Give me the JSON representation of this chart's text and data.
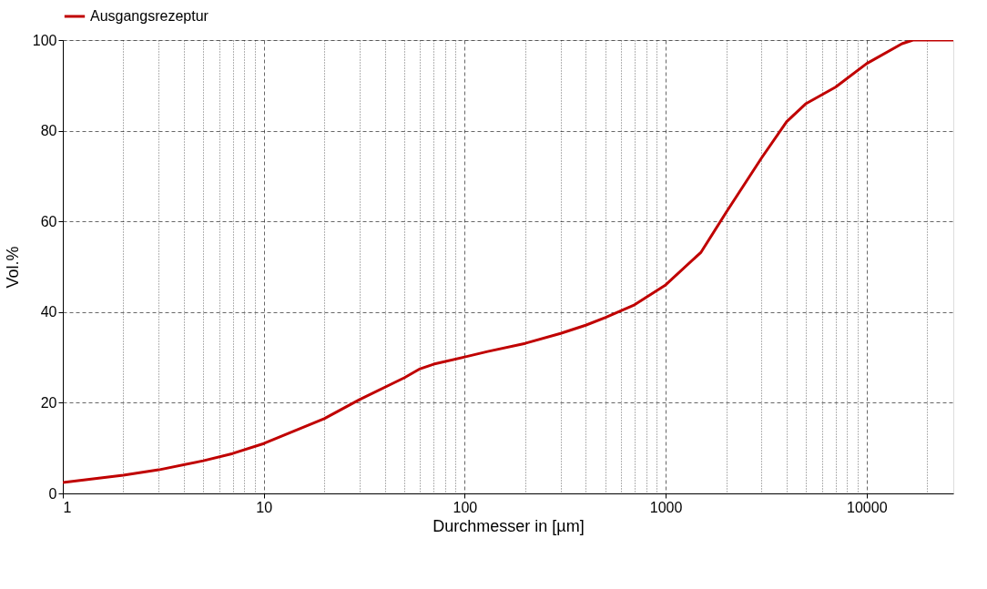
{
  "chart_data": {
    "type": "line",
    "xlabel": "Durchmesser in [µm]",
    "ylabel": "Vol.%",
    "log": "x",
    "legend": "top",
    "grid": true,
    "line_style": "solid",
    "marker": "none",
    "xlim": [
      1,
      27000
    ],
    "ylim": [
      0,
      100
    ],
    "yticks": [
      0,
      20,
      40,
      60,
      80,
      100
    ],
    "xticks": [
      1,
      {
        "value": 2,
        "label": null
      },
      {
        "value": 3,
        "label": null
      },
      {
        "value": 4,
        "label": null
      },
      {
        "value": 5,
        "label": null
      },
      {
        "value": 6,
        "label": null
      },
      {
        "value": 7,
        "label": null
      },
      {
        "value": 8,
        "label": null
      },
      {
        "value": 9,
        "label": null
      },
      10,
      {
        "value": 20,
        "label": null
      },
      {
        "value": 30,
        "label": null
      },
      {
        "value": 40,
        "label": null
      },
      {
        "value": 50,
        "label": null
      },
      {
        "value": 60,
        "label": null
      },
      {
        "value": 70,
        "label": null
      },
      {
        "value": 80,
        "label": null
      },
      {
        "value": 90,
        "label": null
      },
      100,
      {
        "value": 200,
        "label": null
      },
      {
        "value": 300,
        "label": null
      },
      {
        "value": 400,
        "label": null
      },
      {
        "value": 500,
        "label": null
      },
      {
        "value": 600,
        "label": null
      },
      {
        "value": 700,
        "label": null
      },
      {
        "value": 800,
        "label": null
      },
      {
        "value": 900,
        "label": null
      },
      1000,
      {
        "value": 2000,
        "label": null
      },
      {
        "value": 3000,
        "label": null
      },
      {
        "value": 4000,
        "label": null
      },
      {
        "value": 5000,
        "label": null
      },
      {
        "value": 6000,
        "label": null
      },
      {
        "value": 7000,
        "label": null
      },
      {
        "value": 8000,
        "label": null
      },
      {
        "value": 9000,
        "label": null
      },
      10000,
      {
        "value": 20000,
        "label": null
      }
    ],
    "x": [
      1,
      2,
      3,
      5,
      7,
      10,
      20,
      30,
      50,
      60,
      70,
      100,
      130,
      200,
      300,
      400,
      500,
      700,
      1000,
      1500,
      2000,
      3000,
      4000,
      5000,
      7000,
      10000,
      15000,
      17000,
      27000
    ],
    "series": [
      {
        "name": "Ausgangsrezeptur",
        "color": "#c00000",
        "values": [
          2.4,
          4.0,
          5.2,
          7.2,
          8.8,
          11,
          16.5,
          20.7,
          25.5,
          27.5,
          28.5,
          30.1,
          31.3,
          33.1,
          35.3,
          37.1,
          38.8,
          41.6,
          46,
          53.2,
          62,
          74,
          82,
          86,
          89.6,
          94.8,
          99.2,
          100,
          100
        ]
      }
    ]
  }
}
